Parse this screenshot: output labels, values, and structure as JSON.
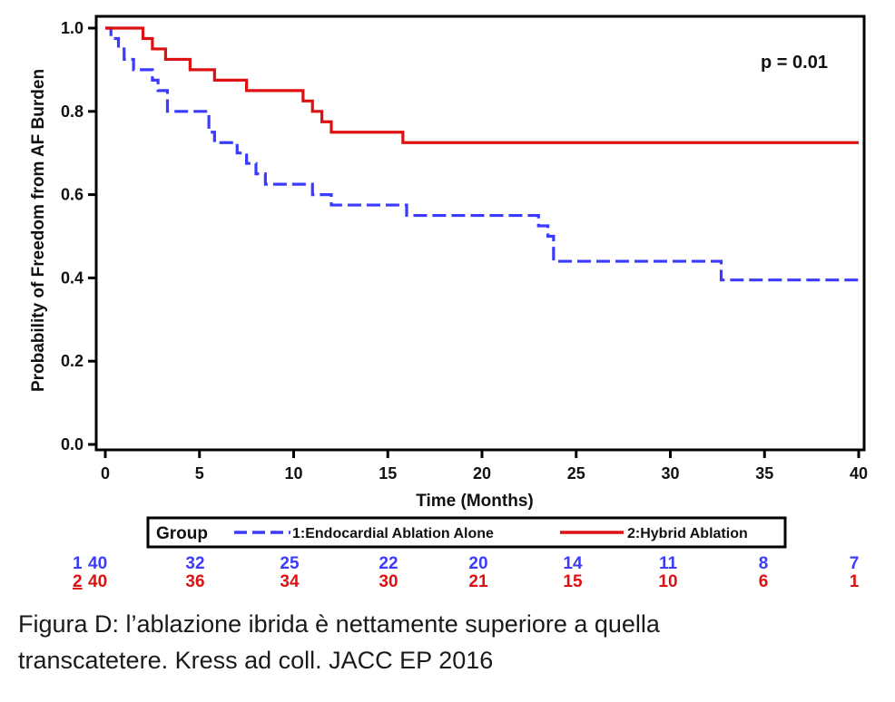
{
  "chart_data": {
    "type": "line",
    "ylabel": "Probability of Freedom from AF Burden",
    "xlabel": "Time (Months)",
    "xlim": [
      0,
      40
    ],
    "ylim": [
      0,
      1
    ],
    "xticks": [
      "0",
      "5",
      "10",
      "15",
      "20",
      "25",
      "30",
      "35",
      "40"
    ],
    "yticks": [
      "0.0",
      "0.2",
      "0.4",
      "0.6",
      "0.8",
      "1.0"
    ],
    "grid": false,
    "annotation": "p = 0.01",
    "legend": {
      "title": "Group",
      "placement": "bottom",
      "entries": [
        "1:Endocardial Ablation Alone",
        "2:Hybrid Ablation"
      ]
    },
    "series": [
      {
        "name": "1:Endocardial Ablation Alone",
        "style": "dashed",
        "color": "#3b3bff",
        "x": [
          0,
          0.3,
          0.7,
          1.0,
          1.5,
          2.5,
          2.8,
          3.3,
          5.5,
          5.8,
          7.0,
          7.5,
          8.0,
          8.5,
          11.0,
          11.5,
          12.0,
          16.0,
          23.0,
          23.5,
          23.8,
          32.7,
          40
        ],
        "y": [
          1.0,
          0.975,
          0.95,
          0.925,
          0.9,
          0.875,
          0.85,
          0.8,
          0.75,
          0.725,
          0.7,
          0.675,
          0.65,
          0.625,
          0.6,
          0.6,
          0.575,
          0.55,
          0.525,
          0.5,
          0.44,
          0.395,
          0.395
        ]
      },
      {
        "name": "2:Hybrid Ablation",
        "style": "solid",
        "color": "#dd1111",
        "x": [
          0,
          2.0,
          2.5,
          3.2,
          4.5,
          5.8,
          7.5,
          10.5,
          11.0,
          11.5,
          12.0,
          12.5,
          15.8,
          40
        ],
        "y": [
          1.0,
          0.975,
          0.95,
          0.925,
          0.9,
          0.875,
          0.85,
          0.825,
          0.8,
          0.775,
          0.75,
          0.75,
          0.725,
          0.725
        ]
      }
    ]
  },
  "risk_table": {
    "rows": [
      {
        "group": "1",
        "color": "#3b3bff",
        "values": [
          "40",
          "32",
          "25",
          "22",
          "20",
          "14",
          "11",
          "8",
          "7"
        ]
      },
      {
        "group": "2",
        "color": "#dd1111",
        "values": [
          "40",
          "36",
          "34",
          "30",
          "21",
          "15",
          "10",
          "6",
          "1"
        ]
      }
    ]
  },
  "caption": {
    "line1": "Figura D:  l’ablazione ibrida è nettamente superiore a  quella",
    "line2": "transcatetere. Kress ad coll. JACC EP 2016"
  }
}
